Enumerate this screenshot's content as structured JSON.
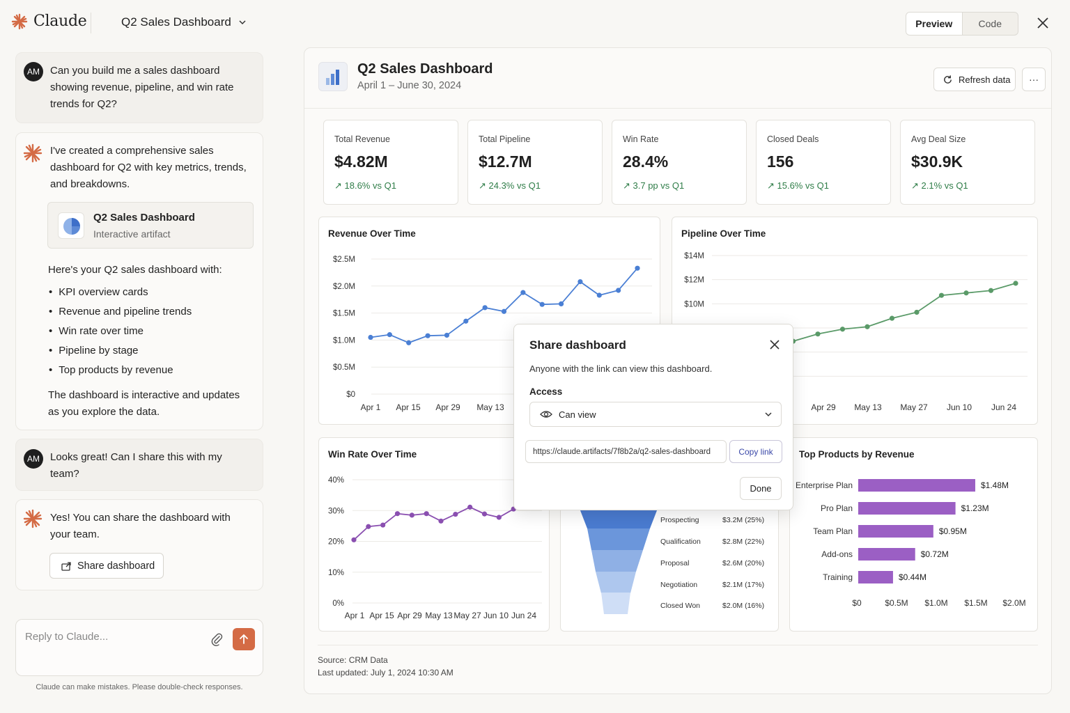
{
  "app": {
    "logo_text": "Claude",
    "title": "Q2 Sales Dashboard",
    "view_tabs": [
      "Preview",
      "Code"
    ],
    "active_tab": "Preview"
  },
  "chat": {
    "messages": [
      {
        "role": "user",
        "avatar": "AM",
        "text": "Can you build me a sales dashboard showing revenue, pipeline, and win rate trends for Q2?"
      },
      {
        "role": "assistant",
        "text": "I've created a comprehensive sales dashboard for Q2 with key metrics, trends, and breakdowns.",
        "artifact": {
          "title": "Q2 Sales Dashboard",
          "subtitle": "Interactive artifact"
        },
        "intro": "Here's your Q2 sales dashboard with:",
        "bullets": [
          "KPI overview cards",
          "Revenue and pipeline trends",
          "Win rate over time",
          "Pipeline by stage",
          "Top products by revenue"
        ],
        "outro": "The dashboard is interactive and updates as you explore the data."
      },
      {
        "role": "user",
        "avatar": "AM",
        "text": "Looks great! Can I share this with my team?"
      },
      {
        "role": "assistant",
        "text": "Yes! You can share the dashboard with your team.",
        "button": "Share dashboard"
      }
    ],
    "reply_placeholder": "Reply to Claude...",
    "disclaimer": "Claude can make mistakes. Please double-check responses."
  },
  "dashboard": {
    "title": "Q2 Sales Dashboard",
    "date_range": "April 1 – June 30, 2024",
    "refresh_label": "Refresh data",
    "more_label": "···",
    "kpis": [
      {
        "label": "Total Revenue",
        "value": "$4.82M",
        "delta": "↗ 18.6% vs Q1"
      },
      {
        "label": "Total Pipeline",
        "value": "$12.7M",
        "delta": "↗ 24.3% vs Q1"
      },
      {
        "label": "Win Rate",
        "value": "28.4%",
        "delta": "↗ 3.7 pp vs Q1"
      },
      {
        "label": "Closed Deals",
        "value": "156",
        "delta": "↗ 15.6% vs Q1"
      },
      {
        "label": "Avg Deal Size",
        "value": "$30.9K",
        "delta": "↗ 2.1% vs Q1"
      }
    ],
    "source": "Source: CRM Data",
    "updated": "Last updated: July 1, 2024 10:30 AM"
  },
  "chart_data": [
    {
      "type": "line",
      "title": "Revenue Over Time",
      "color": "#4a7fd4",
      "y_ticks": [
        "$0",
        "$0.5M",
        "$1.0M",
        "$1.5M",
        "$2.0M",
        "$2.5M"
      ],
      "ylim": [
        0,
        2.5
      ],
      "x_ticks": [
        "Apr 1",
        "Apr 15",
        "Apr 29",
        "May 13"
      ],
      "values": [
        1.05,
        1.1,
        0.95,
        1.08,
        1.09,
        1.35,
        1.6,
        1.53,
        1.88,
        1.66,
        1.67,
        2.08,
        1.83,
        1.92,
        2.33
      ]
    },
    {
      "type": "line",
      "title": "Pipeline Over Time",
      "color": "#5a9a68",
      "y_ticks": [
        "$8M",
        "$10M",
        "$12M",
        "$14M"
      ],
      "ylim": [
        0,
        14
      ],
      "x_ticks": [
        "Apr 29",
        "May 13",
        "May 27",
        "Jun 10",
        "Jun 24"
      ],
      "values": [
        6.4,
        6.9,
        7.5,
        7.9,
        8.1,
        8.8,
        9.3,
        10.7,
        10.9,
        11.1,
        11.7
      ]
    },
    {
      "type": "line",
      "title": "Win Rate Over Time",
      "color": "#8a4fb0",
      "y_ticks": [
        "0%",
        "10%",
        "20%",
        "30%",
        "40%"
      ],
      "ylim": [
        0,
        40
      ],
      "x_ticks": [
        "Apr 1",
        "Apr 15",
        "Apr 29",
        "May 13",
        "May 27",
        "Jun 10",
        "Jun 24"
      ],
      "values": [
        20.5,
        24.8,
        25.3,
        29,
        28.5,
        29,
        26.6,
        28.8,
        31.1,
        28.9,
        27.8,
        30.5,
        31.7
      ]
    },
    {
      "type": "funnel",
      "stages": [
        {
          "name": "Prospecting",
          "value": "$3.2M (25%)"
        },
        {
          "name": "Qualification",
          "value": "$2.8M (22%)"
        },
        {
          "name": "Proposal",
          "value": "$2.6M (20%)"
        },
        {
          "name": "Negotiation",
          "value": "$2.1M (17%)"
        },
        {
          "name": "Closed Won",
          "value": "$2.0M (16%)"
        }
      ],
      "colors": [
        "#4a7bd0",
        "#6b96db",
        "#8fb0e5",
        "#aec7ee",
        "#cfdef6"
      ]
    },
    {
      "type": "bar",
      "title": "Top Products by Revenue",
      "orientation": "horizontal",
      "color": "#9b5fc4",
      "categories": [
        "Enterprise Plan",
        "Pro Plan",
        "Team Plan",
        "Add-ons",
        "Training"
      ],
      "values": [
        1.48,
        1.23,
        0.95,
        0.72,
        0.44
      ],
      "labels": [
        "$1.48M",
        "$1.23M",
        "$0.95M",
        "$0.72M",
        "$0.44M"
      ],
      "x_ticks": [
        "$0",
        "$0.5M",
        "$1.0M",
        "$1.5M",
        "$2.0M"
      ],
      "xlim": [
        0,
        2.0
      ]
    }
  ],
  "share_modal": {
    "title": "Share dashboard",
    "description": "Anyone with the link can view this dashboard.",
    "access_label": "Access",
    "access_value": "Can view",
    "url": "https://claude.artifacts/7f8b2a/q2-sales-dashboard",
    "copy_label": "Copy link",
    "done_label": "Done"
  }
}
